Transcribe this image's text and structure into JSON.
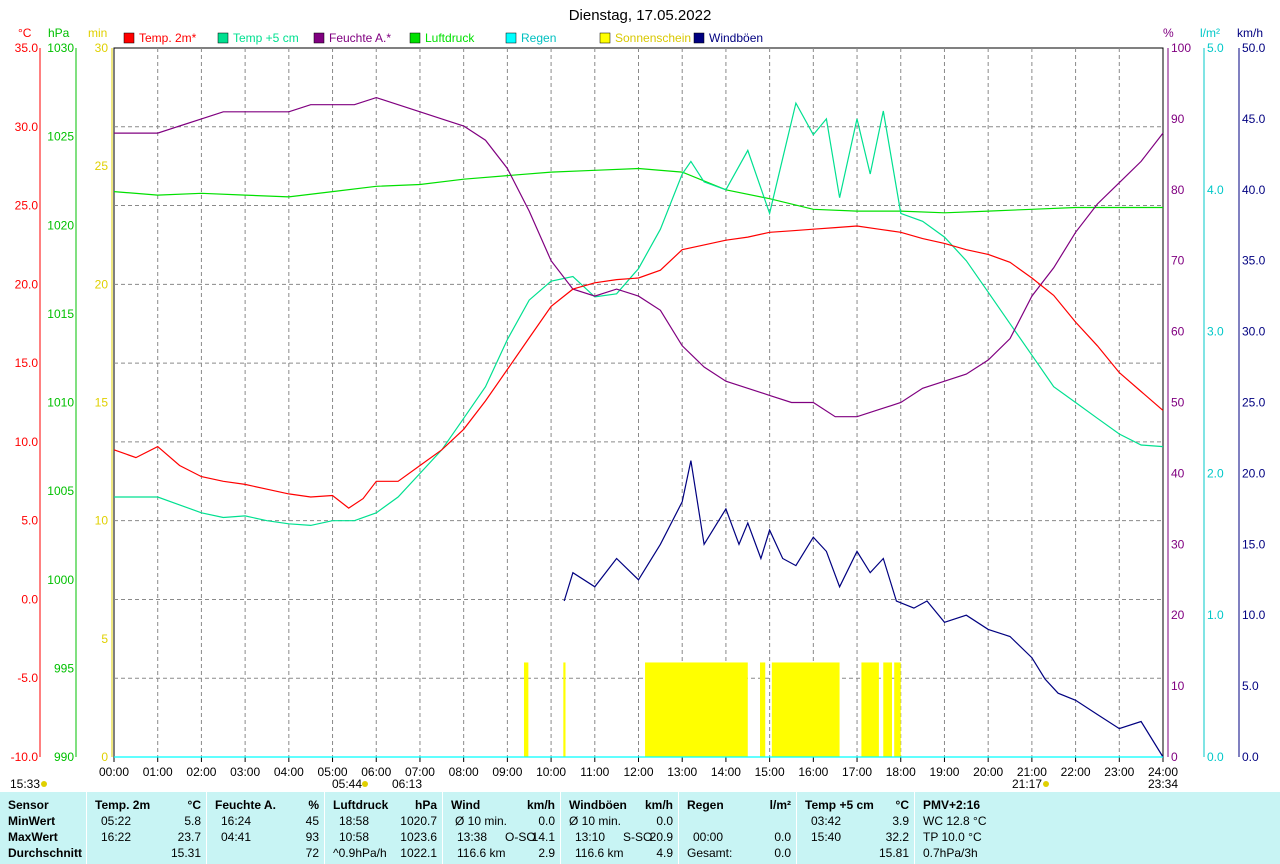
{
  "title": "Dienstag, 17.05.2022",
  "axes": {
    "temp_unit": "°C",
    "hpa_unit": "hPa",
    "min_unit": "min",
    "pct_unit": "%",
    "rain_unit": "l/m²",
    "kmh_unit": "km/h",
    "temp_ticks": [
      "35.0",
      "30.0",
      "25.0",
      "20.0",
      "15.0",
      "10.0",
      "5.0",
      "0.0",
      "-5.0",
      "-10.0"
    ],
    "hpa_ticks": [
      "1030",
      "1025",
      "1020",
      "1015",
      "1010",
      "1005",
      "1000",
      "995",
      "990"
    ],
    "min_ticks": [
      "30",
      "25",
      "20",
      "15",
      "10",
      "5",
      "0"
    ],
    "pct_ticks": [
      "100",
      "90",
      "80",
      "70",
      "60",
      "50",
      "40",
      "30",
      "20",
      "10",
      "0"
    ],
    "rain_ticks": [
      "5.0",
      "4.0",
      "3.0",
      "2.0",
      "1.0",
      "0.0"
    ],
    "kmh_ticks": [
      "50.0",
      "45.0",
      "40.0",
      "35.0",
      "30.0",
      "25.0",
      "20.0",
      "15.0",
      "10.0",
      "5.0",
      "0.0"
    ],
    "time_ticks": [
      "00:00",
      "01:00",
      "02:00",
      "03:00",
      "04:00",
      "05:00",
      "06:00",
      "07:00",
      "08:00",
      "09:00",
      "10:00",
      "11:00",
      "12:00",
      "13:00",
      "14:00",
      "15:00",
      "16:00",
      "17:00",
      "18:00",
      "19:00",
      "20:00",
      "21:00",
      "22:00",
      "23:00",
      "24:00"
    ]
  },
  "legend": [
    {
      "label": "Temp. 2m*",
      "color": "#ff0000"
    },
    {
      "label": "Temp +5 cm",
      "color": "#00e090"
    },
    {
      "label": "Feuchte A.*",
      "color": "#800080"
    },
    {
      "label": "Luftdruck",
      "color": "#00e000"
    },
    {
      "label": "Regen",
      "color": "#00ffff"
    },
    {
      "label": "Sonnenschein",
      "color": "#ffff00"
    },
    {
      "label": "Windböen",
      "color": "#000080"
    }
  ],
  "sun_marks": {
    "moon_left": "15:33",
    "sunrise": "05:44",
    "dawn": "06:13",
    "sunset": "21:17",
    "moon_right": "23:34"
  },
  "chart_data": {
    "type": "line",
    "title": "Dienstag, 17.05.2022",
    "x_range_hours": [
      0,
      24
    ],
    "ylim_temp": [
      -10,
      35
    ],
    "ylim_pressure": [
      990,
      1030
    ],
    "ylim_humidity": [
      0,
      100
    ],
    "ylim_sun_min": [
      0,
      30
    ],
    "ylim_rain": [
      0,
      5
    ],
    "ylim_wind": [
      0,
      50
    ],
    "grid": true,
    "series": [
      {
        "name": "Temp. 2m*",
        "axis": "temp",
        "color": "#ff0000",
        "x": [
          0,
          0.5,
          1,
          1.5,
          2,
          2.5,
          3,
          3.5,
          4,
          4.5,
          5,
          5.37,
          5.7,
          6,
          6.5,
          7,
          7.5,
          8,
          8.5,
          9,
          9.5,
          10,
          10.5,
          11,
          11.5,
          12,
          12.5,
          13,
          13.5,
          14,
          14.5,
          15,
          15.5,
          16,
          16.5,
          17,
          17.5,
          18,
          18.5,
          19,
          19.5,
          20,
          20.5,
          21,
          21.5,
          22,
          22.5,
          23,
          23.5,
          24
        ],
        "y": [
          9.5,
          9.0,
          9.7,
          8.5,
          7.8,
          7.5,
          7.3,
          7.0,
          6.7,
          6.5,
          6.6,
          5.8,
          6.4,
          7.5,
          7.5,
          8.5,
          9.5,
          10.8,
          12.6,
          14.6,
          16.6,
          18.6,
          19.7,
          20.1,
          20.3,
          20.4,
          20.9,
          22.2,
          22.5,
          22.8,
          23.0,
          23.3,
          23.4,
          23.5,
          23.6,
          23.7,
          23.5,
          23.3,
          22.9,
          22.6,
          22.2,
          21.9,
          21.4,
          20.4,
          19.3,
          17.6,
          16.1,
          14.4,
          13.2,
          12.0
        ]
      },
      {
        "name": "Temp +5 cm",
        "axis": "temp",
        "color": "#00e090",
        "x": [
          0,
          0.5,
          1,
          1.5,
          2,
          2.5,
          3,
          3.5,
          4,
          4.5,
          5,
          5.5,
          6,
          6.5,
          7,
          7.5,
          8,
          8.5,
          9,
          9.5,
          10,
          10.5,
          11,
          11.5,
          12,
          12.5,
          13,
          13.2,
          13.5,
          14,
          14.5,
          15,
          15.3,
          15.6,
          16,
          16.3,
          16.6,
          17,
          17.3,
          17.6,
          18,
          18.5,
          19,
          19.5,
          20,
          20.5,
          21,
          21.5,
          22,
          22.5,
          23,
          23.5,
          24
        ],
        "y": [
          6.5,
          6.5,
          6.5,
          6.0,
          5.5,
          5.2,
          5.3,
          5.0,
          4.8,
          4.7,
          5.0,
          5.0,
          5.5,
          6.5,
          8.0,
          9.5,
          11.5,
          13.5,
          16.5,
          19.0,
          20.2,
          20.5,
          19.2,
          19.4,
          21.0,
          23.5,
          27.0,
          27.8,
          26.5,
          26.0,
          28.5,
          24.5,
          28.0,
          31.5,
          29.5,
          30.5,
          25.5,
          30.5,
          27.0,
          31.0,
          24.5,
          24.0,
          23.0,
          21.5,
          19.5,
          17.5,
          15.5,
          13.5,
          12.5,
          11.5,
          10.5,
          9.8,
          9.7
        ]
      },
      {
        "name": "Feuchte A.*",
        "axis": "humidity",
        "color": "#800080",
        "x": [
          0,
          0.5,
          1,
          1.5,
          2,
          2.5,
          3,
          3.5,
          4,
          4.5,
          5,
          5.5,
          6,
          6.5,
          7,
          7.5,
          8,
          8.5,
          9,
          9.5,
          10,
          10.5,
          11,
          11.5,
          12,
          12.5,
          13,
          13.5,
          14,
          14.5,
          15,
          15.5,
          16,
          16.5,
          17,
          17.5,
          18,
          18.5,
          19,
          19.5,
          20,
          20.5,
          21,
          21.5,
          22,
          22.5,
          23,
          23.5,
          24
        ],
        "y": [
          88,
          88,
          88,
          89,
          90,
          91,
          91,
          91,
          91,
          92,
          92,
          92,
          93,
          92,
          91,
          90,
          89,
          87,
          83,
          77,
          70,
          66,
          65,
          66,
          65,
          63,
          58,
          55,
          53,
          52,
          51,
          50,
          50,
          48,
          48,
          49,
          50,
          52,
          53,
          54,
          56,
          59,
          65,
          69,
          74,
          78,
          81,
          84,
          88
        ]
      },
      {
        "name": "Luftdruck",
        "axis": "pressure",
        "color": "#00e000",
        "x": [
          0,
          1,
          2,
          3,
          4,
          5,
          6,
          7,
          8,
          9,
          10,
          11,
          12,
          13,
          14,
          15,
          16,
          17,
          18,
          19,
          20,
          21,
          22,
          23,
          24
        ],
        "y": [
          1021.9,
          1021.7,
          1021.8,
          1021.7,
          1021.6,
          1021.9,
          1022.2,
          1022.3,
          1022.6,
          1022.8,
          1023.0,
          1023.1,
          1023.2,
          1023.0,
          1022.0,
          1021.5,
          1020.9,
          1020.8,
          1020.8,
          1020.7,
          1020.8,
          1020.9,
          1021.0,
          1021.0,
          1021.0
        ]
      },
      {
        "name": "Regen",
        "axis": "rain",
        "color": "#00ffff",
        "x": [
          0,
          24
        ],
        "y": [
          0,
          0
        ]
      },
      {
        "name": "Windböen",
        "axis": "wind",
        "color": "#000080",
        "x": [
          10.3,
          10.5,
          11,
          11.5,
          12,
          12.5,
          13,
          13.2,
          13.5,
          14,
          14.3,
          14.5,
          14.8,
          15,
          15.3,
          15.6,
          16,
          16.3,
          16.6,
          17,
          17.3,
          17.6,
          17.9,
          18.3,
          18.6,
          19,
          19.5,
          20,
          20.5,
          21,
          21.3,
          21.6,
          22,
          22.5,
          23,
          23.5,
          24
        ],
        "y": [
          11.0,
          13.0,
          12.0,
          14.0,
          12.5,
          15.0,
          18.0,
          20.9,
          15.0,
          17.5,
          15.0,
          16.5,
          14.0,
          16.0,
          14.0,
          13.5,
          15.5,
          14.5,
          12.0,
          14.5,
          13.0,
          14.0,
          11.0,
          10.5,
          11.0,
          9.5,
          10.0,
          9.0,
          8.5,
          7.0,
          5.5,
          4.5,
          4.0,
          3.0,
          2.0,
          2.5,
          0.0
        ]
      }
    ],
    "sunshine_blocks_hours": [
      [
        9.38,
        9.48
      ],
      [
        10.28,
        10.33
      ],
      [
        12.15,
        14.5
      ],
      [
        14.78,
        14.9
      ],
      [
        15.05,
        16.6
      ],
      [
        17.1,
        17.5
      ],
      [
        17.6,
        17.8
      ],
      [
        17.85,
        18.0
      ]
    ]
  },
  "stats": {
    "sensor": {
      "header": "Sensor",
      "rows": [
        "MinWert",
        "MaxWert",
        "Durchschnitt"
      ]
    },
    "temp2m": {
      "title": "Temp. 2m",
      "unit": "°C",
      "min_time": "05:22",
      "min_val": "5.8",
      "max_time": "16:22",
      "max_val": "23.7",
      "avg": "15.31"
    },
    "feuchte": {
      "title": "Feuchte A.",
      "unit": "%",
      "min_time": "16:24",
      "min_val": "45",
      "max_time": "04:41",
      "max_val": "93",
      "avg": "72"
    },
    "druck": {
      "title": "Luftdruck",
      "unit": "hPa",
      "min_time": "18:58",
      "min_val": "1020.7",
      "max_time": "10:58",
      "max_val": "1023.6",
      "trend": "^0.9hPa/h",
      "avg": "1022.1"
    },
    "wind": {
      "title": "Wind",
      "unit": "km/h",
      "r1_label": "Ø 10 min.",
      "r1_val": "0.0",
      "r2_time": "13:38",
      "r2_dir": "O-SO",
      "r2_val": "14.1",
      "r3_km": "116.6 km",
      "r3_val": "2.9"
    },
    "boeen": {
      "title": "Windböen",
      "unit": "km/h",
      "r1_label": "Ø 10 min.",
      "r1_val": "0.0",
      "r2_time": "13:10",
      "r2_dir": "S-SO",
      "r2_val": "20.9",
      "r3_km": "116.6 km",
      "r3_val": "4.9"
    },
    "regen": {
      "title": "Regen",
      "unit": "l/m²",
      "r2_time": "00:00",
      "r2_val": "0.0",
      "r3_label": "Gesamt:",
      "r3_val": "0.0"
    },
    "temp5": {
      "title": "Temp +5 cm",
      "unit": "°C",
      "min_time": "03:42",
      "min_val": "3.9",
      "max_time": "15:40",
      "max_val": "32.2",
      "avg": "15.81"
    },
    "pmv": {
      "title": "PMV+2:16",
      "r1": "WC 12.8 °C",
      "r2": "TP 10.0 °C",
      "r3": "0.7hPa/3h"
    }
  }
}
